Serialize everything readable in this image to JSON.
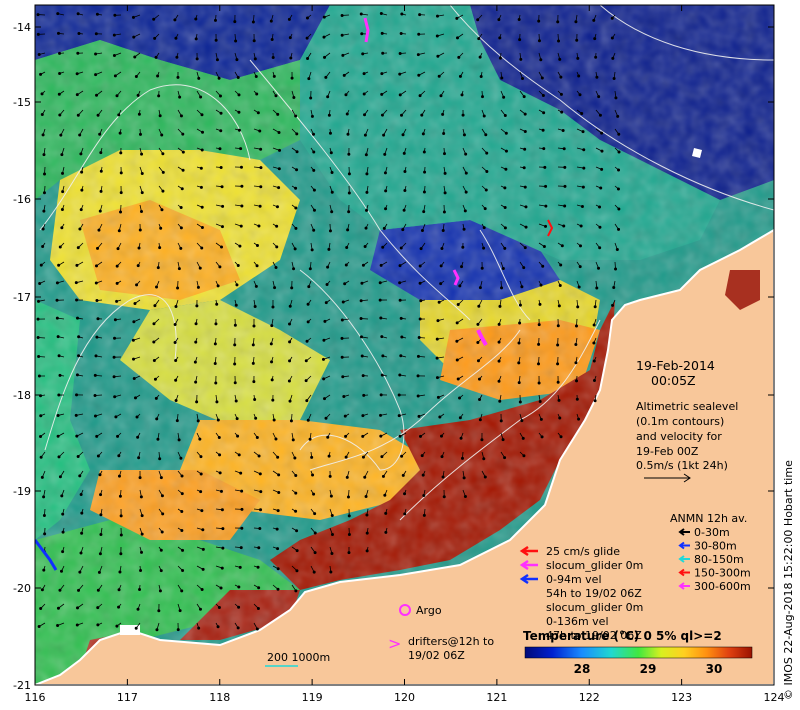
{
  "map": {
    "date": "19-Feb-2014",
    "time": "00:05Z",
    "altimetry_note": [
      "Altimetric sealevel",
      "(0.1m contours)",
      "and velocity for",
      "19-Feb 00Z",
      "0.5m/s (1kt 24h)"
    ],
    "x_ticks": [
      "116",
      "117",
      "118",
      "119",
      "120",
      "121",
      "122",
      "123",
      "124"
    ],
    "y_ticks": [
      "-14",
      "-15",
      "-16",
      "-17",
      "-18",
      "-19",
      "-20",
      "-21"
    ],
    "credit": "© IMOS 22-Aug-2018 15:22:00 Hobart time",
    "colors": {
      "land": "#f8c79a",
      "sea_dark": "#0a1a8c",
      "warm": "#a31500"
    }
  },
  "anmn": {
    "title": "ANMN 12h av.",
    "items": [
      {
        "label": "0-30m",
        "color": "#000000"
      },
      {
        "label": "30-80m",
        "color": "#1030ff"
      },
      {
        "label": "80-150m",
        "color": "#20d8d8"
      },
      {
        "label": "150-300m",
        "color": "#ff1010"
      },
      {
        "label": "300-600m",
        "color": "#ff30ff"
      }
    ]
  },
  "glider": {
    "lines": [
      {
        "text": "25 cm/s glide",
        "color": "#ff1010"
      },
      {
        "text": "slocum_glider 0m",
        "color": "#ff30ff"
      },
      {
        "text": "0-94m vel",
        "color": "#1030ff"
      }
    ],
    "extra": [
      "54h to 19/02 06Z",
      "slocum_glider 0m",
      "0-136m vel",
      "47h to 19/02 06Z"
    ]
  },
  "argo": {
    "label": "Argo"
  },
  "drifters": {
    "label1": "drifters@12h to",
    "label2": "19/02 06Z"
  },
  "scale": {
    "label": "200  1000m"
  },
  "colorbar": {
    "title": "Temperature (°C) 0 5% ql>=2",
    "ticks": [
      "28",
      "29",
      "30"
    ]
  }
}
